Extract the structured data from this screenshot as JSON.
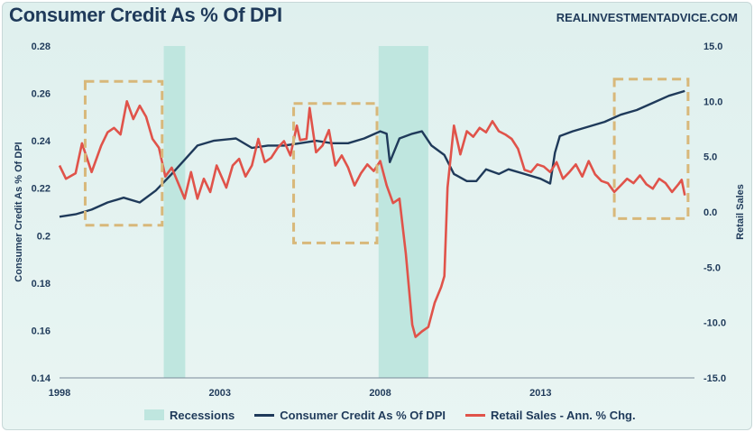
{
  "header": {
    "title": "Consumer Credit As % Of DPI",
    "brand": "REALINVESTMENTADVICE.COM"
  },
  "chart_data": {
    "type": "line",
    "title": "Consumer Credit As % Of DPI",
    "xlabel": "",
    "ylabel": "Consumer Credit As % Of DPI",
    "y2label": "Retail Sales",
    "x_tick_labels": [
      "1998",
      "2003",
      "2008",
      "2013"
    ],
    "xlim": [
      1998,
      2017.8
    ],
    "ylim": [
      0.14,
      0.28
    ],
    "y_tick_labels": [
      "0.28",
      "0.26",
      "0.24",
      "0.22",
      "0.2",
      "0.18",
      "0.16",
      "0.14"
    ],
    "y2lim": [
      -15,
      15
    ],
    "y2_tick_labels": [
      "15.0",
      "10.0",
      "5.0",
      "0.0",
      "-5.0",
      "-10.0",
      "-15.0"
    ],
    "grid": false,
    "legend_position": "bottom",
    "recessions": [
      [
        2001.25,
        2001.92
      ],
      [
        2007.95,
        2009.5
      ]
    ],
    "highlight_boxes": [
      {
        "x": [
          1998.8,
          2001.2
        ],
        "y2": [
          -1.2,
          11.8
        ]
      },
      {
        "x": [
          2005.3,
          2007.9
        ],
        "y2": [
          -2.8,
          9.8
        ]
      },
      {
        "x": [
          2015.3,
          2017.6
        ],
        "y2": [
          -0.6,
          12.0
        ]
      }
    ],
    "series": [
      {
        "name": "Consumer Credit As % Of DPI",
        "axis": "left",
        "color": "#1f3a5a",
        "points": [
          [
            1998.0,
            0.208
          ],
          [
            1998.5,
            0.209
          ],
          [
            1999.0,
            0.211
          ],
          [
            1999.5,
            0.214
          ],
          [
            2000.0,
            0.216
          ],
          [
            2000.5,
            0.214
          ],
          [
            2001.0,
            0.219
          ],
          [
            2001.5,
            0.226
          ],
          [
            2001.9,
            0.232
          ],
          [
            2002.3,
            0.238
          ],
          [
            2002.8,
            0.24
          ],
          [
            2003.5,
            0.241
          ],
          [
            2004.0,
            0.237
          ],
          [
            2004.5,
            0.238
          ],
          [
            2005.0,
            0.238
          ],
          [
            2005.5,
            0.239
          ],
          [
            2006.0,
            0.24
          ],
          [
            2006.5,
            0.239
          ],
          [
            2007.0,
            0.239
          ],
          [
            2007.5,
            0.241
          ],
          [
            2008.0,
            0.244
          ],
          [
            2008.2,
            0.243
          ],
          [
            2008.3,
            0.231
          ],
          [
            2008.6,
            0.241
          ],
          [
            2009.0,
            0.243
          ],
          [
            2009.3,
            0.244
          ],
          [
            2009.6,
            0.238
          ],
          [
            2010.0,
            0.234
          ],
          [
            2010.3,
            0.226
          ],
          [
            2010.7,
            0.223
          ],
          [
            2011.0,
            0.223
          ],
          [
            2011.3,
            0.228
          ],
          [
            2011.7,
            0.226
          ],
          [
            2012.0,
            0.228
          ],
          [
            2012.5,
            0.226
          ],
          [
            2013.0,
            0.224
          ],
          [
            2013.3,
            0.222
          ],
          [
            2013.45,
            0.235
          ],
          [
            2013.6,
            0.242
          ],
          [
            2014.0,
            0.244
          ],
          [
            2014.5,
            0.246
          ],
          [
            2015.0,
            0.248
          ],
          [
            2015.5,
            0.251
          ],
          [
            2016.0,
            0.253
          ],
          [
            2016.5,
            0.256
          ],
          [
            2017.0,
            0.259
          ],
          [
            2017.5,
            0.261
          ]
        ]
      },
      {
        "name": "Retail Sales - Ann. % Chg.",
        "axis": "right",
        "color": "#e0534a",
        "points": [
          [
            1998.0,
            4.2
          ],
          [
            1998.2,
            3.0
          ],
          [
            1998.5,
            3.5
          ],
          [
            1998.7,
            6.2
          ],
          [
            1999.0,
            3.6
          ],
          [
            1999.3,
            6.0
          ],
          [
            1999.5,
            7.2
          ],
          [
            1999.7,
            7.6
          ],
          [
            1999.9,
            7.0
          ],
          [
            2000.1,
            10.0
          ],
          [
            2000.3,
            8.4
          ],
          [
            2000.5,
            9.6
          ],
          [
            2000.7,
            8.6
          ],
          [
            2000.9,
            6.6
          ],
          [
            2001.1,
            5.8
          ],
          [
            2001.3,
            3.2
          ],
          [
            2001.5,
            4.0
          ],
          [
            2001.7,
            2.6
          ],
          [
            2001.9,
            1.2
          ],
          [
            2002.1,
            3.6
          ],
          [
            2002.3,
            1.2
          ],
          [
            2002.5,
            3.0
          ],
          [
            2002.7,
            1.8
          ],
          [
            2002.9,
            4.2
          ],
          [
            2003.2,
            2.2
          ],
          [
            2003.4,
            4.2
          ],
          [
            2003.6,
            4.8
          ],
          [
            2003.8,
            3.2
          ],
          [
            2004.0,
            4.2
          ],
          [
            2004.2,
            6.6
          ],
          [
            2004.4,
            4.5
          ],
          [
            2004.6,
            4.9
          ],
          [
            2004.8,
            5.8
          ],
          [
            2005.0,
            6.4
          ],
          [
            2005.2,
            5.1
          ],
          [
            2005.4,
            7.8
          ],
          [
            2005.5,
            6.5
          ],
          [
            2005.7,
            6.6
          ],
          [
            2005.8,
            9.4
          ],
          [
            2006.0,
            5.4
          ],
          [
            2006.2,
            6.0
          ],
          [
            2006.4,
            7.4
          ],
          [
            2006.6,
            4.2
          ],
          [
            2006.8,
            5.1
          ],
          [
            2007.0,
            4.0
          ],
          [
            2007.2,
            2.4
          ],
          [
            2007.4,
            3.5
          ],
          [
            2007.6,
            4.3
          ],
          [
            2007.8,
            3.7
          ],
          [
            2008.0,
            4.6
          ],
          [
            2008.2,
            2.4
          ],
          [
            2008.4,
            0.8
          ],
          [
            2008.6,
            1.2
          ],
          [
            2008.8,
            -3.8
          ],
          [
            2009.0,
            -10.2
          ],
          [
            2009.1,
            -11.3
          ],
          [
            2009.3,
            -10.8
          ],
          [
            2009.5,
            -10.4
          ],
          [
            2009.7,
            -8.2
          ],
          [
            2009.9,
            -6.8
          ],
          [
            2010.0,
            -5.8
          ],
          [
            2010.1,
            2.2
          ],
          [
            2010.3,
            7.8
          ],
          [
            2010.5,
            5.2
          ],
          [
            2010.7,
            7.3
          ],
          [
            2010.9,
            6.8
          ],
          [
            2011.1,
            7.6
          ],
          [
            2011.3,
            7.2
          ],
          [
            2011.5,
            8.2
          ],
          [
            2011.7,
            7.3
          ],
          [
            2011.9,
            7.0
          ],
          [
            2012.1,
            6.6
          ],
          [
            2012.3,
            5.7
          ],
          [
            2012.5,
            3.8
          ],
          [
            2012.7,
            3.6
          ],
          [
            2012.9,
            4.3
          ],
          [
            2013.1,
            4.1
          ],
          [
            2013.3,
            3.6
          ],
          [
            2013.5,
            4.5
          ],
          [
            2013.7,
            3.0
          ],
          [
            2013.9,
            3.6
          ],
          [
            2014.1,
            4.3
          ],
          [
            2014.3,
            3.2
          ],
          [
            2014.5,
            4.6
          ],
          [
            2014.7,
            3.4
          ],
          [
            2014.9,
            2.8
          ],
          [
            2015.1,
            2.6
          ],
          [
            2015.3,
            1.8
          ],
          [
            2015.5,
            2.4
          ],
          [
            2015.7,
            3.0
          ],
          [
            2015.9,
            2.6
          ],
          [
            2016.1,
            3.3
          ],
          [
            2016.3,
            2.5
          ],
          [
            2016.5,
            2.1
          ],
          [
            2016.7,
            3.0
          ],
          [
            2016.9,
            2.6
          ],
          [
            2017.1,
            1.8
          ],
          [
            2017.3,
            2.5
          ],
          [
            2017.4,
            2.9
          ],
          [
            2017.5,
            1.5
          ]
        ]
      }
    ]
  },
  "legend": {
    "recessions_label": "Recessions",
    "credit_label": "Consumer Credit As % Of DPI",
    "retail_label": "Retail Sales - Ann. % Chg."
  },
  "colors": {
    "recession": "#bfe6df",
    "highlight": "#d8b87a",
    "credit": "#1f3a5a",
    "retail": "#e0534a"
  }
}
